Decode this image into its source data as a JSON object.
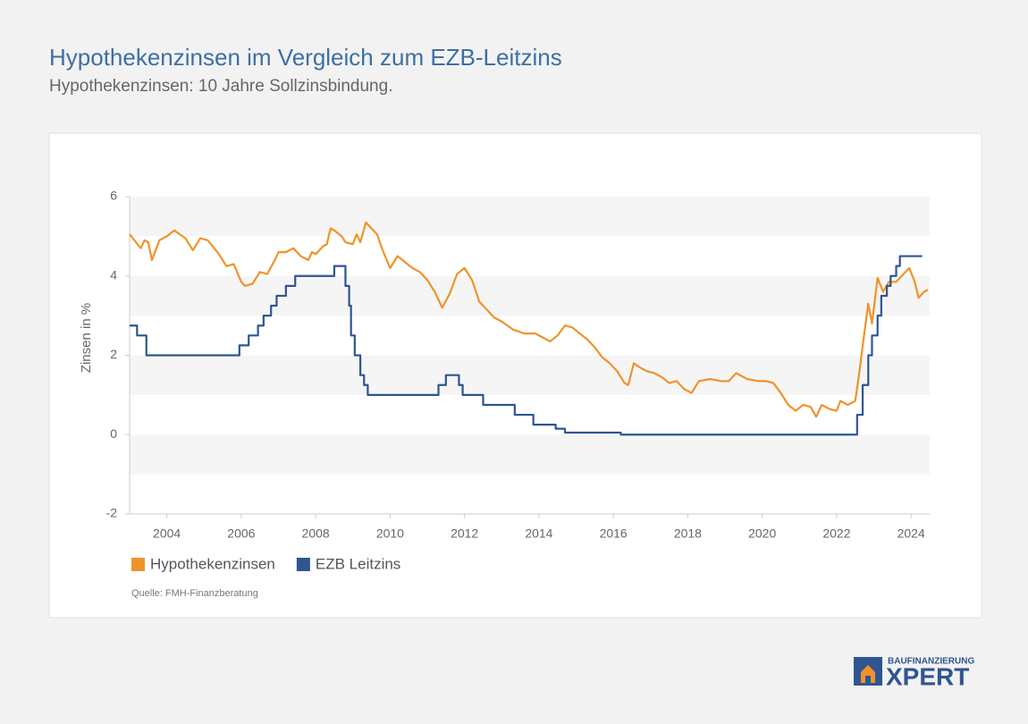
{
  "title": "Hypothekenzinsen im Vergleich zum EZB-Leitzins",
  "subtitle": "Hypothekenzinsen: 10 Jahre Sollzinsbindung.",
  "logo": {
    "top": "BAUFINANZIERUNG",
    "bottom": "XPERT"
  },
  "chart_data": {
    "type": "line",
    "y_label": "Zinsen in %",
    "source": "Quelle: FMH-Finanzberatung",
    "xlim": [
      2003,
      2024.5
    ],
    "xticks": [
      2004,
      2006,
      2008,
      2010,
      2012,
      2014,
      2016,
      2018,
      2020,
      2022,
      2024
    ],
    "ylim": [
      -2,
      6
    ],
    "yticks": [
      -2,
      0,
      2,
      4,
      6
    ],
    "series": [
      {
        "name": "Hypothekenzinsen",
        "color": "#f0932b",
        "step": false,
        "x": [
          2003.0,
          2003.3,
          2003.4,
          2003.5,
          2003.6,
          2003.8,
          2004.0,
          2004.2,
          2004.5,
          2004.7,
          2004.9,
          2005.1,
          2005.4,
          2005.6,
          2005.8,
          2006.0,
          2006.1,
          2006.3,
          2006.5,
          2006.7,
          2006.9,
          2007.0,
          2007.2,
          2007.4,
          2007.6,
          2007.8,
          2007.9,
          2008.0,
          2008.2,
          2008.3,
          2008.4,
          2008.5,
          2008.7,
          2008.8,
          2009.0,
          2009.1,
          2009.2,
          2009.35,
          2009.5,
          2009.65,
          2009.8,
          2010.0,
          2010.2,
          2010.4,
          2010.6,
          2010.8,
          2011.0,
          2011.2,
          2011.4,
          2011.6,
          2011.8,
          2012.0,
          2012.2,
          2012.4,
          2012.6,
          2012.8,
          2013.0,
          2013.3,
          2013.6,
          2013.9,
          2014.1,
          2014.3,
          2014.5,
          2014.7,
          2014.9,
          2015.1,
          2015.3,
          2015.5,
          2015.7,
          2015.9,
          2016.1,
          2016.3,
          2016.4,
          2016.55,
          2016.7,
          2016.9,
          2017.1,
          2017.3,
          2017.5,
          2017.7,
          2017.9,
          2018.1,
          2018.3,
          2018.6,
          2018.9,
          2019.1,
          2019.3,
          2019.6,
          2019.9,
          2020.1,
          2020.3,
          2020.5,
          2020.7,
          2020.9,
          2021.1,
          2021.3,
          2021.45,
          2021.6,
          2021.8,
          2022.0,
          2022.1,
          2022.3,
          2022.5,
          2022.6,
          2022.75,
          2022.85,
          2022.95,
          2023.1,
          2023.25,
          2023.4,
          2023.6,
          2023.8,
          2023.95,
          2024.1,
          2024.2,
          2024.35,
          2024.45
        ],
        "values": [
          5.05,
          4.7,
          4.9,
          4.85,
          4.4,
          4.9,
          5.0,
          5.15,
          4.95,
          4.65,
          4.95,
          4.9,
          4.55,
          4.25,
          4.3,
          3.85,
          3.75,
          3.8,
          4.1,
          4.05,
          4.4,
          4.6,
          4.6,
          4.7,
          4.5,
          4.4,
          4.6,
          4.55,
          4.75,
          4.8,
          5.2,
          5.15,
          5.0,
          4.85,
          4.8,
          5.05,
          4.85,
          5.35,
          5.2,
          5.05,
          4.65,
          4.2,
          4.5,
          4.35,
          4.2,
          4.1,
          3.9,
          3.6,
          3.2,
          3.55,
          4.05,
          4.2,
          3.9,
          3.35,
          3.15,
          2.95,
          2.85,
          2.65,
          2.55,
          2.55,
          2.45,
          2.35,
          2.5,
          2.75,
          2.7,
          2.55,
          2.4,
          2.2,
          1.95,
          1.8,
          1.6,
          1.3,
          1.25,
          1.8,
          1.7,
          1.6,
          1.55,
          1.45,
          1.3,
          1.35,
          1.15,
          1.05,
          1.35,
          1.4,
          1.35,
          1.35,
          1.55,
          1.4,
          1.35,
          1.35,
          1.3,
          1.05,
          0.75,
          0.6,
          0.75,
          0.7,
          0.45,
          0.75,
          0.65,
          0.6,
          0.85,
          0.75,
          0.85,
          1.5,
          2.6,
          3.3,
          2.8,
          3.95,
          3.6,
          3.85,
          3.85,
          4.05,
          4.2,
          3.85,
          3.45,
          3.6,
          3.65
        ]
      },
      {
        "name": "EZB Leitzins",
        "color": "#2f5591",
        "step": true,
        "x": [
          2003.0,
          2003.2,
          2003.45,
          2005.95,
          2006.2,
          2006.45,
          2006.6,
          2006.8,
          2006.95,
          2007.2,
          2007.45,
          2008.5,
          2008.8,
          2008.9,
          2008.95,
          2009.05,
          2009.2,
          2009.3,
          2009.4,
          2011.3,
          2011.5,
          2011.85,
          2011.95,
          2012.5,
          2013.35,
          2013.85,
          2014.45,
          2014.7,
          2016.2,
          2022.55,
          2022.7,
          2022.85,
          2022.95,
          2023.1,
          2023.2,
          2023.35,
          2023.45,
          2023.6,
          2023.7,
          2024.3
        ],
        "values": [
          2.75,
          2.5,
          2.0,
          2.25,
          2.5,
          2.75,
          3.0,
          3.25,
          3.5,
          3.75,
          4.0,
          4.25,
          3.75,
          3.25,
          2.5,
          2.0,
          1.5,
          1.25,
          1.0,
          1.25,
          1.5,
          1.25,
          1.0,
          0.75,
          0.5,
          0.25,
          0.15,
          0.05,
          0.0,
          0.5,
          1.25,
          2.0,
          2.5,
          3.0,
          3.5,
          3.75,
          4.0,
          4.25,
          4.5,
          4.5
        ]
      }
    ]
  }
}
